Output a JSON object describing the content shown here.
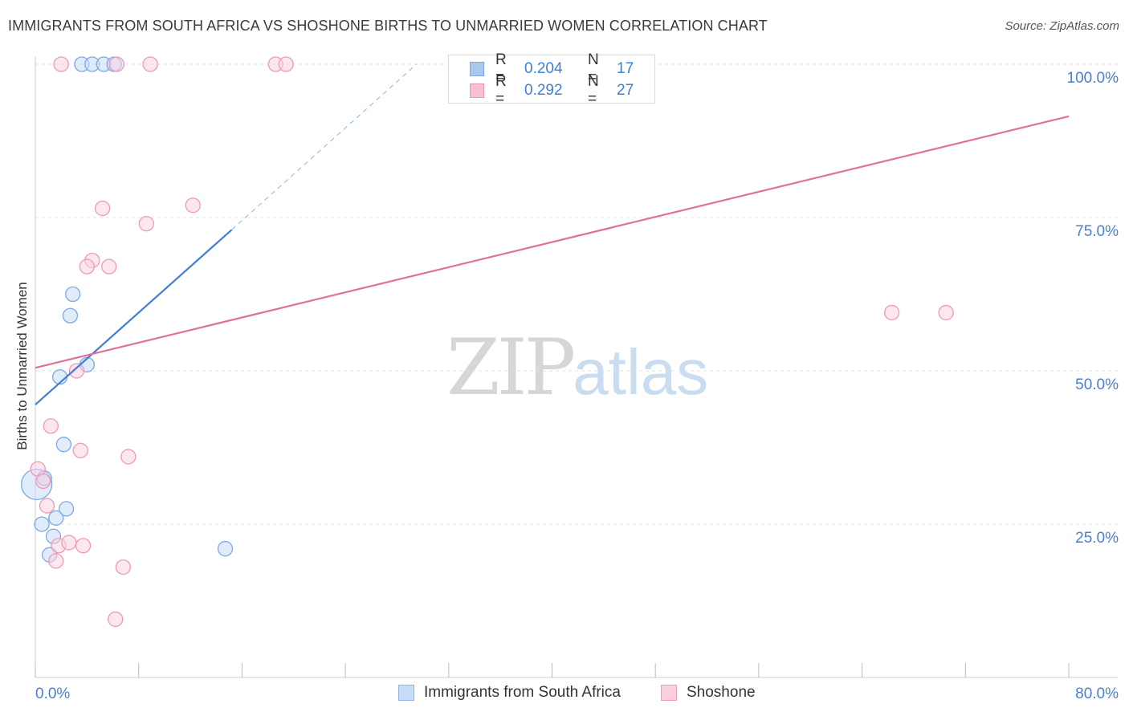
{
  "title": "IMMIGRANTS FROM SOUTH AFRICA VS SHOSHONE BIRTHS TO UNMARRIED WOMEN CORRELATION CHART",
  "source": "Source: ZipAtlas.com",
  "watermark": {
    "zip": "ZIP",
    "atlas": "atlas"
  },
  "legend_top": {
    "rows": [
      {
        "r_label": "R =",
        "r_value": "0.204",
        "n_label": "N =",
        "n_value": "17",
        "color": "#a8c8f0",
        "border": "#7aa7e0"
      },
      {
        "r_label": "R =",
        "r_value": "0.292",
        "n_label": "N =",
        "n_value": "27",
        "color": "#f9c0d2",
        "border": "#ef94b2"
      }
    ]
  },
  "legend_bottom": {
    "items": [
      {
        "label": "Immigrants from South Africa",
        "color": "#c9dcf5",
        "border": "#8fb3e6"
      },
      {
        "label": "Shoshone",
        "color": "#fbd0de",
        "border": "#ef9ab7"
      }
    ]
  },
  "colors": {
    "blue_line": "#3f7fd4",
    "pink_line": "#e0709a",
    "blue_fill": "#c8dcf6",
    "blue_stroke": "#7ea8e2",
    "pink_fill": "#fbd3e0",
    "pink_stroke": "#ec9ab8",
    "tick_text": "#4a7fcf",
    "grid": "#e3e3e3"
  },
  "chart_data": {
    "type": "scatter",
    "title": "IMMIGRANTS FROM SOUTH AFRICA VS SHOSHONE BIRTHS TO UNMARRIED WOMEN CORRELATION CHART",
    "xlabel": "",
    "ylabel": "Births to Unmarried Women",
    "xlim": [
      0,
      80
    ],
    "ylim": [
      0,
      102
    ],
    "x_tick_labels": [
      {
        "value": 0,
        "label": "0.0%"
      },
      {
        "value": 80,
        "label": "80.0%"
      }
    ],
    "y_tick_labels": [
      {
        "value": 25,
        "label": "25.0%"
      },
      {
        "value": 50,
        "label": "50.0%"
      },
      {
        "value": 75,
        "label": "75.0%"
      },
      {
        "value": 100,
        "label": "100.0%"
      }
    ],
    "x_minor_ticks": [
      0,
      8,
      16,
      24,
      32,
      40,
      48,
      56,
      64,
      72,
      80
    ],
    "grid": true,
    "series": [
      {
        "name": "Immigrants from South Africa",
        "points": [
          {
            "x": 3.6,
            "y": 100
          },
          {
            "x": 4.4,
            "y": 100
          },
          {
            "x": 5.3,
            "y": 100
          },
          {
            "x": 6.1,
            "y": 100
          },
          {
            "x": 2.9,
            "y": 62.5
          },
          {
            "x": 2.7,
            "y": 59
          },
          {
            "x": 4.0,
            "y": 51
          },
          {
            "x": 1.9,
            "y": 49
          },
          {
            "x": 2.2,
            "y": 38
          },
          {
            "x": 0.1,
            "y": 31.5,
            "size": "large"
          },
          {
            "x": 0.7,
            "y": 32.5
          },
          {
            "x": 2.4,
            "y": 27.5
          },
          {
            "x": 1.6,
            "y": 26
          },
          {
            "x": 0.5,
            "y": 25
          },
          {
            "x": 1.4,
            "y": 23
          },
          {
            "x": 1.1,
            "y": 20
          },
          {
            "x": 14.7,
            "y": 21
          }
        ],
        "trend": {
          "x0": 0,
          "y0": 44.5,
          "x1": 15.2,
          "y1": 73,
          "dashed_to_x": 29.5,
          "dashed_to_y": 100
        }
      },
      {
        "name": "Shoshone",
        "points": [
          {
            "x": 2.0,
            "y": 100
          },
          {
            "x": 6.3,
            "y": 100
          },
          {
            "x": 8.9,
            "y": 100
          },
          {
            "x": 18.6,
            "y": 100
          },
          {
            "x": 19.4,
            "y": 100
          },
          {
            "x": 42.7,
            "y": 100
          },
          {
            "x": 5.2,
            "y": 76.5
          },
          {
            "x": 12.2,
            "y": 77
          },
          {
            "x": 8.6,
            "y": 74
          },
          {
            "x": 4.4,
            "y": 68
          },
          {
            "x": 4.0,
            "y": 67
          },
          {
            "x": 5.7,
            "y": 67
          },
          {
            "x": 66.3,
            "y": 59.5
          },
          {
            "x": 70.5,
            "y": 59.5
          },
          {
            "x": 3.2,
            "y": 50
          },
          {
            "x": 1.2,
            "y": 41
          },
          {
            "x": 3.5,
            "y": 37
          },
          {
            "x": 7.2,
            "y": 36
          },
          {
            "x": 0.2,
            "y": 34
          },
          {
            "x": 0.6,
            "y": 32
          },
          {
            "x": 0.9,
            "y": 28
          },
          {
            "x": 1.8,
            "y": 21.5
          },
          {
            "x": 2.6,
            "y": 22
          },
          {
            "x": 3.7,
            "y": 21.5
          },
          {
            "x": 1.6,
            "y": 19
          },
          {
            "x": 6.8,
            "y": 18
          },
          {
            "x": 6.2,
            "y": 9.5
          }
        ],
        "trend": {
          "x0": 0,
          "y0": 50.5,
          "x1": 80,
          "y1": 91.5
        }
      }
    ]
  }
}
